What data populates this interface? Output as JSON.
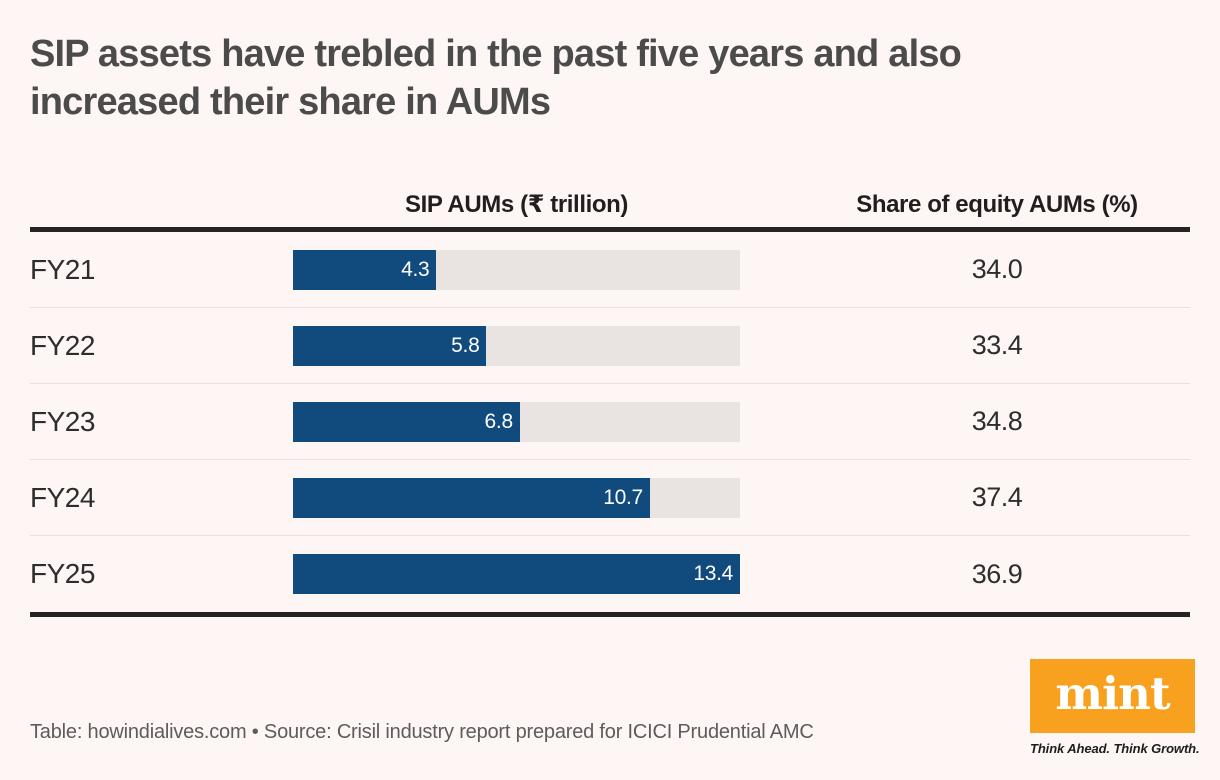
{
  "title": "SIP assets have trebled in the past five years and also increased their share in AUMs",
  "columns": {
    "bar_header": "SIP AUMs (₹ trillion)",
    "share_header": "Share of equity AUMs (%)"
  },
  "bar_axis_max": 13.4,
  "rows": [
    {
      "year": "FY21",
      "sip_aum": 4.3,
      "sip_aum_label": "4.3",
      "share_label": "34.0"
    },
    {
      "year": "FY22",
      "sip_aum": 5.8,
      "sip_aum_label": "5.8",
      "share_label": "33.4"
    },
    {
      "year": "FY23",
      "sip_aum": 6.8,
      "sip_aum_label": "6.8",
      "share_label": "34.8"
    },
    {
      "year": "FY24",
      "sip_aum": 10.7,
      "sip_aum_label": "10.7",
      "share_label": "37.4"
    },
    {
      "year": "FY25",
      "sip_aum": 13.4,
      "sip_aum_label": "13.4",
      "share_label": "36.9"
    }
  ],
  "footer": {
    "source": "Table: howindialives.com • Source: Crisil industry report prepared for ICICI Prudential AMC"
  },
  "branding": {
    "wordmark": "mint",
    "tagline": "Think Ahead. Think Growth."
  },
  "colors": {
    "background": "#fdf6f4",
    "bar_fill": "#114b7d",
    "bar_track": "#e9e4e2",
    "rule_dark": "#262324",
    "row_separator": "#eadfdc",
    "brand_orange": "#f8a11e",
    "title_text": "#4b4b4b",
    "body_text": "#2d2d2d",
    "footer_text": "#5c5c5c"
  },
  "chart_data": {
    "type": "bar",
    "orientation": "horizontal",
    "layout": "table-with-inline-bars",
    "title": "SIP assets have trebled in the past five years and also increased their share in AUMs",
    "categories": [
      "FY21",
      "FY22",
      "FY23",
      "FY24",
      "FY25"
    ],
    "series": [
      {
        "name": "SIP AUMs (₹ trillion)",
        "values": [
          4.3,
          5.8,
          6.8,
          10.7,
          13.4
        ]
      },
      {
        "name": "Share of equity AUMs (%)",
        "values": [
          34.0,
          33.4,
          34.8,
          37.4,
          36.9
        ]
      }
    ],
    "bar_axis_range": [
      0,
      13.4
    ],
    "grid": false,
    "legend": false,
    "annotations": "bar values printed inside bars; share values printed as plain numbers"
  }
}
